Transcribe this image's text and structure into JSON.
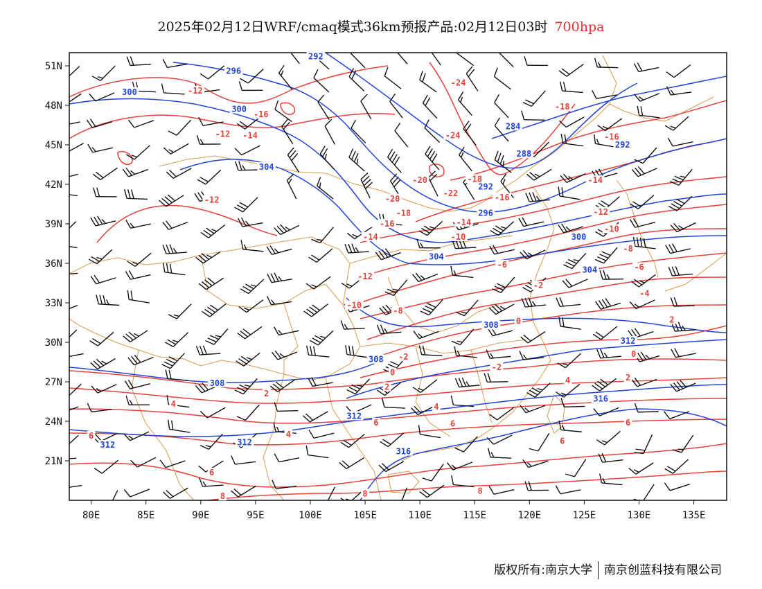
{
  "title": {
    "main": "2025年02月12日WRF/cmaq模式36km预报产品:02月12日03时",
    "level": "700hpa"
  },
  "footer": {
    "left": "版权所有:南京大学",
    "right": "南京创蓝科技有限公司"
  },
  "colors": {
    "temperature_contour": "#e8413a",
    "height_contour": "#2145d8",
    "boundary": "#d99a4c",
    "wind_barb": "#111111",
    "level_text": "#e03030"
  },
  "map": {
    "lon_range": [
      78,
      138
    ],
    "lat_range": [
      18,
      52
    ],
    "lon_ticks": [
      {
        "value": 80,
        "label": "80E"
      },
      {
        "value": 85,
        "label": "85E"
      },
      {
        "value": 90,
        "label": "90E"
      },
      {
        "value": 95,
        "label": "95E"
      },
      {
        "value": 100,
        "label": "100E"
      },
      {
        "value": 105,
        "label": "105E"
      },
      {
        "value": 110,
        "label": "110E"
      },
      {
        "value": 115,
        "label": "115E"
      },
      {
        "value": 120,
        "label": "120E"
      },
      {
        "value": 125,
        "label": "125E"
      },
      {
        "value": 130,
        "label": "130E"
      },
      {
        "value": 135,
        "label": "135E"
      }
    ],
    "lat_ticks": [
      {
        "value": 21,
        "label": "21N"
      },
      {
        "value": 24,
        "label": "24N"
      },
      {
        "value": 27,
        "label": "27N"
      },
      {
        "value": 30,
        "label": "30N"
      },
      {
        "value": 33,
        "label": "33N"
      },
      {
        "value": 36,
        "label": "36N"
      },
      {
        "value": 39,
        "label": "39N"
      },
      {
        "value": 42,
        "label": "42N"
      },
      {
        "value": 45,
        "label": "45N"
      },
      {
        "value": 48,
        "label": "48N"
      },
      {
        "value": 51,
        "label": "51N"
      }
    ],
    "temp_labels": [
      {
        "text": "-12",
        "lon": 89.5,
        "lat": 49.0
      },
      {
        "text": "-16",
        "lon": 95.5,
        "lat": 47.2
      },
      {
        "text": "-12",
        "lon": 92.0,
        "lat": 45.7
      },
      {
        "text": "-14",
        "lon": 94.5,
        "lat": 45.6
      },
      {
        "text": "-12",
        "lon": 91.0,
        "lat": 40.7
      },
      {
        "text": "-24",
        "lon": 113.5,
        "lat": 49.6
      },
      {
        "text": "-24",
        "lon": 113.0,
        "lat": 45.6
      },
      {
        "text": "-18",
        "lon": 123.0,
        "lat": 47.8
      },
      {
        "text": "-16",
        "lon": 127.5,
        "lat": 45.5
      },
      {
        "text": "-14",
        "lon": 126.0,
        "lat": 42.2
      },
      {
        "text": "-18",
        "lon": 115.0,
        "lat": 42.3
      },
      {
        "text": "-20",
        "lon": 110.0,
        "lat": 42.2
      },
      {
        "text": "-22",
        "lon": 112.8,
        "lat": 41.2
      },
      {
        "text": "-16",
        "lon": 117.5,
        "lat": 40.9
      },
      {
        "text": "-20",
        "lon": 107.5,
        "lat": 40.8
      },
      {
        "text": "-18",
        "lon": 108.5,
        "lat": 39.7
      },
      {
        "text": "-16",
        "lon": 107.0,
        "lat": 38.9
      },
      {
        "text": "-14",
        "lon": 105.5,
        "lat": 37.9
      },
      {
        "text": "-14",
        "lon": 114.0,
        "lat": 39.0
      },
      {
        "text": "-10",
        "lon": 113.5,
        "lat": 37.9
      },
      {
        "text": "-12",
        "lon": 126.5,
        "lat": 39.8
      },
      {
        "text": "-10",
        "lon": 127.5,
        "lat": 38.5
      },
      {
        "text": "-8",
        "lon": 129.0,
        "lat": 37.0
      },
      {
        "text": "-6",
        "lon": 130.0,
        "lat": 35.6
      },
      {
        "text": "-6",
        "lon": 117.5,
        "lat": 35.8
      },
      {
        "text": "-2",
        "lon": 120.8,
        "lat": 34.2
      },
      {
        "text": "-4",
        "lon": 130.5,
        "lat": 33.6
      },
      {
        "text": "-12",
        "lon": 105.0,
        "lat": 34.9
      },
      {
        "text": "-10",
        "lon": 104.0,
        "lat": 32.7
      },
      {
        "text": "-8",
        "lon": 108.0,
        "lat": 32.3
      },
      {
        "text": "-2",
        "lon": 108.5,
        "lat": 28.8
      },
      {
        "text": "0",
        "lon": 107.5,
        "lat": 27.6
      },
      {
        "text": "0",
        "lon": 119.0,
        "lat": 31.5
      },
      {
        "text": "-2",
        "lon": 117.0,
        "lat": 28.0
      },
      {
        "text": "2",
        "lon": 107.0,
        "lat": 26.5
      },
      {
        "text": "2",
        "lon": 96.0,
        "lat": 26.0
      },
      {
        "text": "0",
        "lon": 129.5,
        "lat": 29.0
      },
      {
        "text": "2",
        "lon": 129.0,
        "lat": 27.2
      },
      {
        "text": "2",
        "lon": 133.0,
        "lat": 31.6
      },
      {
        "text": "4",
        "lon": 123.5,
        "lat": 27.0
      },
      {
        "text": "4",
        "lon": 87.5,
        "lat": 25.2
      },
      {
        "text": "4",
        "lon": 111.5,
        "lat": 25.0
      },
      {
        "text": "4",
        "lon": 98.0,
        "lat": 22.9
      },
      {
        "text": "6",
        "lon": 80.0,
        "lat": 22.8
      },
      {
        "text": "6",
        "lon": 106.0,
        "lat": 23.8
      },
      {
        "text": "6",
        "lon": 113.0,
        "lat": 23.7
      },
      {
        "text": "6",
        "lon": 129.0,
        "lat": 23.8
      },
      {
        "text": "6",
        "lon": 123.0,
        "lat": 22.4
      },
      {
        "text": "6",
        "lon": 91.0,
        "lat": 20.0
      },
      {
        "text": "8",
        "lon": 92.0,
        "lat": 18.2
      },
      {
        "text": "8",
        "lon": 105.0,
        "lat": 18.4
      },
      {
        "text": "8",
        "lon": 115.5,
        "lat": 18.6
      }
    ],
    "height_labels": [
      {
        "text": "292",
        "lon": 100.5,
        "lat": 51.6
      },
      {
        "text": "296",
        "lon": 93.0,
        "lat": 50.5
      },
      {
        "text": "300",
        "lon": 83.5,
        "lat": 48.9
      },
      {
        "text": "300",
        "lon": 93.5,
        "lat": 47.6
      },
      {
        "text": "304",
        "lon": 96.0,
        "lat": 43.2
      },
      {
        "text": "284",
        "lon": 118.5,
        "lat": 46.3
      },
      {
        "text": "288",
        "lon": 119.5,
        "lat": 44.2
      },
      {
        "text": "292",
        "lon": 128.5,
        "lat": 44.9
      },
      {
        "text": "292",
        "lon": 116.0,
        "lat": 41.7
      },
      {
        "text": "296",
        "lon": 116.0,
        "lat": 39.7
      },
      {
        "text": "300",
        "lon": 124.5,
        "lat": 37.9
      },
      {
        "text": "304",
        "lon": 111.5,
        "lat": 36.4
      },
      {
        "text": "304",
        "lon": 125.5,
        "lat": 35.4
      },
      {
        "text": "308",
        "lon": 116.5,
        "lat": 31.2
      },
      {
        "text": "308",
        "lon": 106.0,
        "lat": 28.6
      },
      {
        "text": "308",
        "lon": 91.5,
        "lat": 26.8
      },
      {
        "text": "312",
        "lon": 129.0,
        "lat": 30.0
      },
      {
        "text": "312",
        "lon": 104.0,
        "lat": 24.3
      },
      {
        "text": "312",
        "lon": 81.5,
        "lat": 22.1
      },
      {
        "text": "312",
        "lon": 94.0,
        "lat": 22.3
      },
      {
        "text": "316",
        "lon": 108.5,
        "lat": 21.6
      },
      {
        "text": "316",
        "lon": 126.5,
        "lat": 25.6
      }
    ]
  }
}
